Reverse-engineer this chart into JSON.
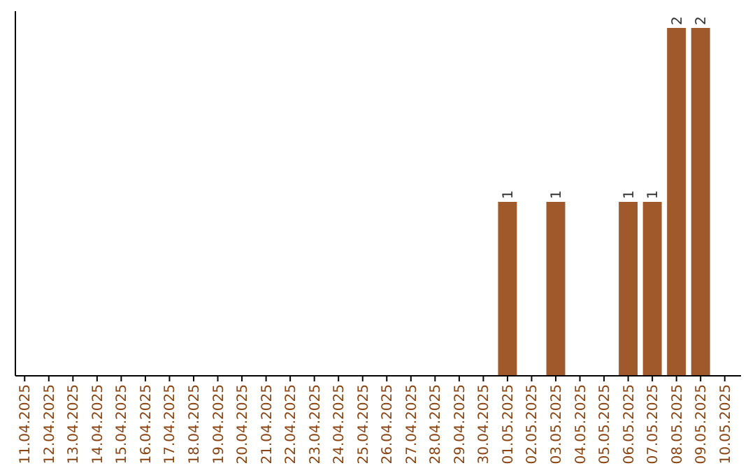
{
  "chart_data": {
    "type": "bar",
    "categories": [
      "11.04.2025",
      "12.04.2025",
      "13.04.2025",
      "14.04.2025",
      "15.04.2025",
      "16.04.2025",
      "17.04.2025",
      "18.04.2025",
      "19.04.2025",
      "20.04.2025",
      "21.04.2025",
      "22.04.2025",
      "23.04.2025",
      "24.04.2025",
      "25.04.2025",
      "26.04.2025",
      "27.04.2025",
      "28.04.2025",
      "29.04.2025",
      "30.04.2025",
      "01.05.2025",
      "02.05.2025",
      "03.05.2025",
      "04.05.2025",
      "05.05.2025",
      "06.05.2025",
      "07.05.2025",
      "08.05.2025",
      "09.05.2025",
      "10.05.2025"
    ],
    "values": [
      null,
      null,
      null,
      null,
      null,
      null,
      null,
      null,
      null,
      null,
      null,
      null,
      null,
      null,
      null,
      null,
      null,
      null,
      null,
      null,
      1,
      null,
      1,
      null,
      null,
      1,
      1,
      2,
      2,
      null
    ],
    "data_labels": true,
    "color": "#a0592a",
    "tick_labels": "x"
  }
}
